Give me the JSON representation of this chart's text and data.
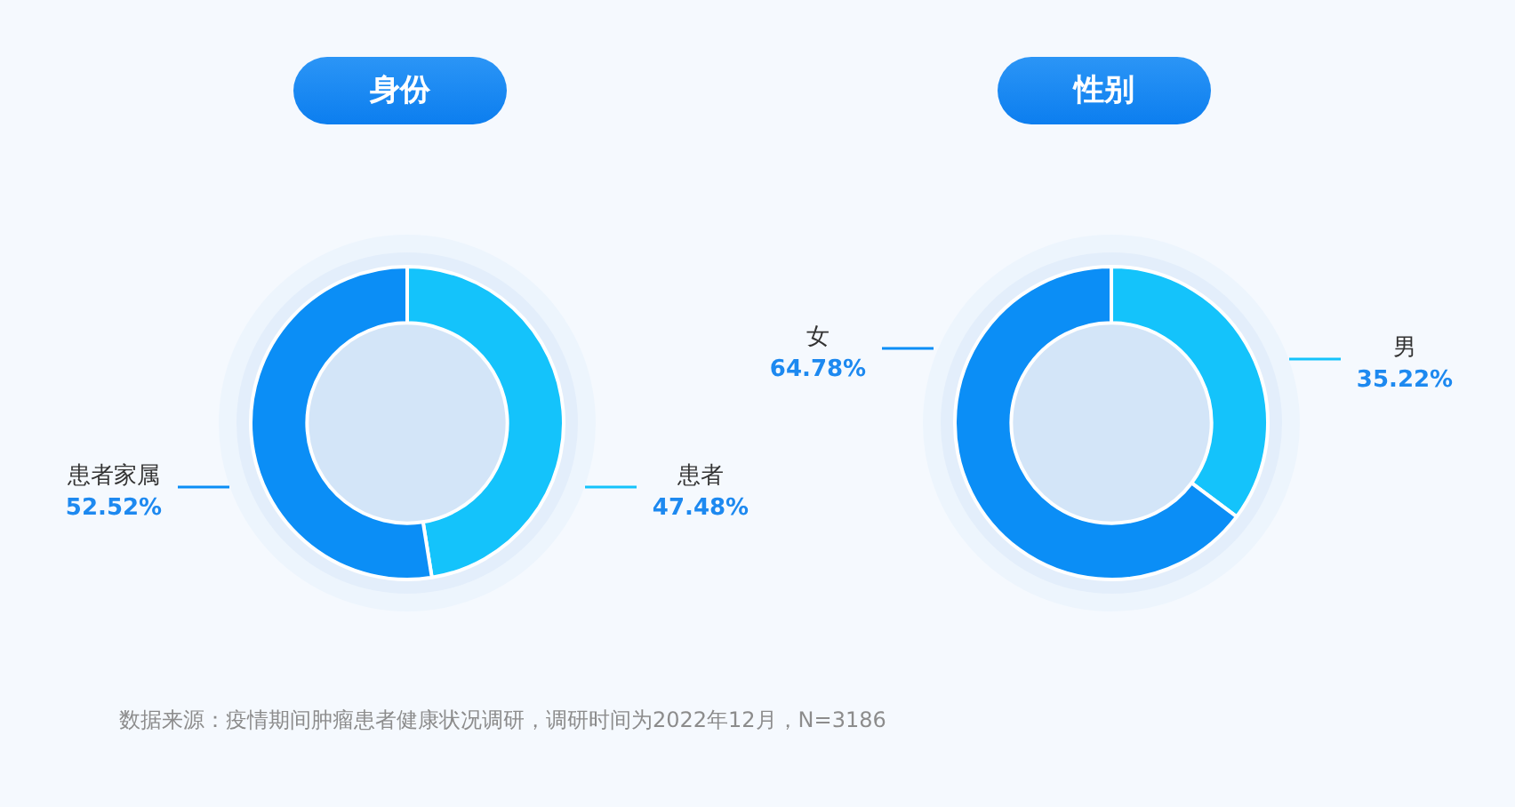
{
  "chart_data": [
    {
      "type": "donut",
      "title": "身份",
      "categories": [
        "患者",
        "患者家属"
      ],
      "values": [
        47.48,
        52.52
      ],
      "colors": [
        "#14c3fb",
        "#0b8ef6"
      ],
      "value_labels": [
        "47.48%",
        "52.52%"
      ],
      "annotations": [
        "数据来源：疫情期间肿瘤患者健康状况调研，调研时间为2022年12月，N=3186"
      ]
    },
    {
      "type": "donut",
      "title": "性别",
      "categories": [
        "男",
        "女"
      ],
      "values": [
        35.22,
        64.78
      ],
      "colors": [
        "#14c3fb",
        "#0b8ef6"
      ],
      "value_labels": [
        "35.22%",
        "64.78%"
      ]
    }
  ]
}
